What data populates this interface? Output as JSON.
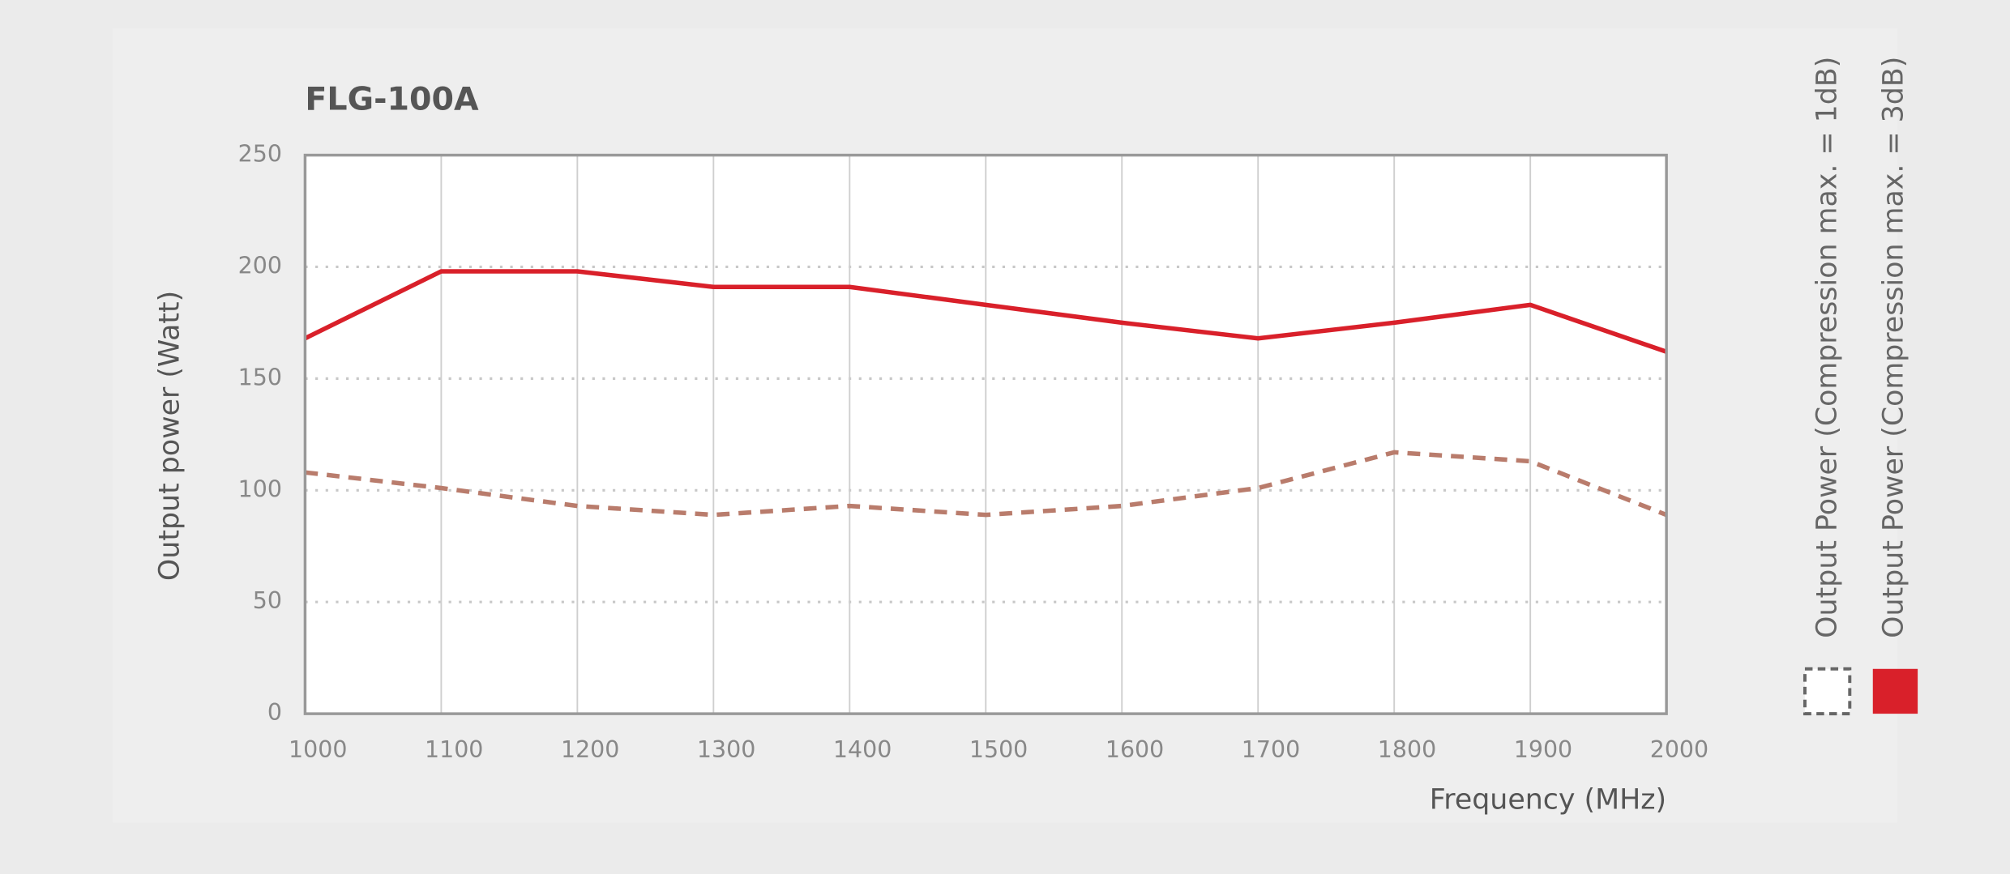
{
  "chart_data": {
    "type": "line",
    "title": "FLG-100A",
    "x_label": "Frequency (MHz)",
    "y_label": "Output power (Watt)",
    "x": [
      1000,
      1100,
      1200,
      1300,
      1400,
      1500,
      1600,
      1700,
      1800,
      1900,
      2000
    ],
    "series": [
      {
        "name": "Output Power (Compression max. = 1dB)",
        "color": "#b97c6c",
        "style": "dashed",
        "values": [
          108,
          101,
          93,
          89,
          93,
          89,
          93,
          101,
          117,
          113,
          89
        ]
      },
      {
        "name": "Output Power (Compression max. = 3dB)",
        "color": "#d9202a",
        "style": "solid",
        "values": [
          168,
          198,
          198,
          191,
          191,
          183,
          175,
          168,
          175,
          183,
          162
        ]
      }
    ],
    "xlim": [
      1000,
      2000
    ],
    "xticks": [
      1000,
      1100,
      1200,
      1300,
      1400,
      1500,
      1600,
      1700,
      1800,
      1900,
      2000
    ],
    "ylim": [
      0,
      250
    ],
    "yticks": [
      0,
      50,
      100,
      150,
      200,
      250
    ],
    "grid": true,
    "legend": "right"
  }
}
